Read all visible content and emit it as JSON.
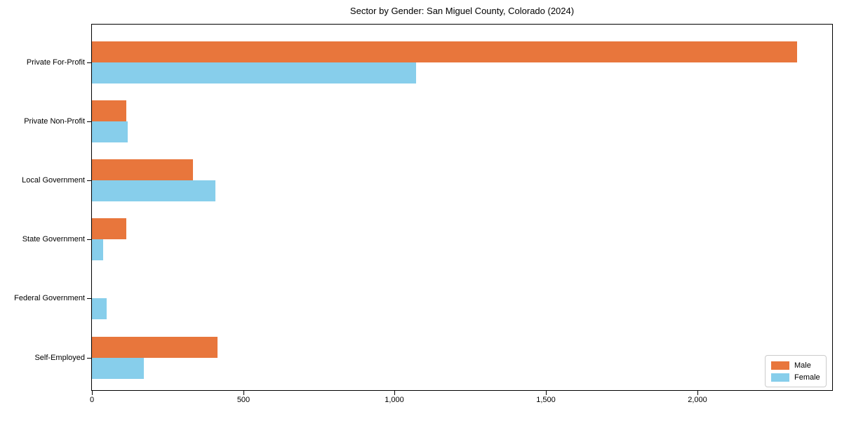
{
  "chart_data": {
    "type": "bar",
    "orientation": "horizontal",
    "title": "Sector by Gender: San Miguel County, Colorado (2024)",
    "categories": [
      "Private For-Profit",
      "Private Non-Profit",
      "Local Government",
      "State Government",
      "Federal Government",
      "Self-Employed"
    ],
    "series": [
      {
        "name": "Male",
        "color": "#E8763C",
        "values": [
          2330,
          113,
          334,
          113,
          0,
          414
        ]
      },
      {
        "name": "Female",
        "color": "#87CEEB",
        "values": [
          1072,
          119,
          409,
          37,
          49,
          172
        ]
      }
    ],
    "xlabel": "",
    "ylabel": "",
    "xlim": [
      0,
      2450
    ],
    "xticks": [
      0,
      500,
      1000,
      1500,
      2000
    ],
    "xtick_labels": [
      "0",
      "500",
      "1,000",
      "1,500",
      "2,000"
    ],
    "grid": false,
    "legend": {
      "position": "lower right",
      "entries": [
        "Male",
        "Female"
      ]
    },
    "colors": {
      "axis": "#000000",
      "legend_border": "#cccccc",
      "background": "#ffffff"
    }
  }
}
